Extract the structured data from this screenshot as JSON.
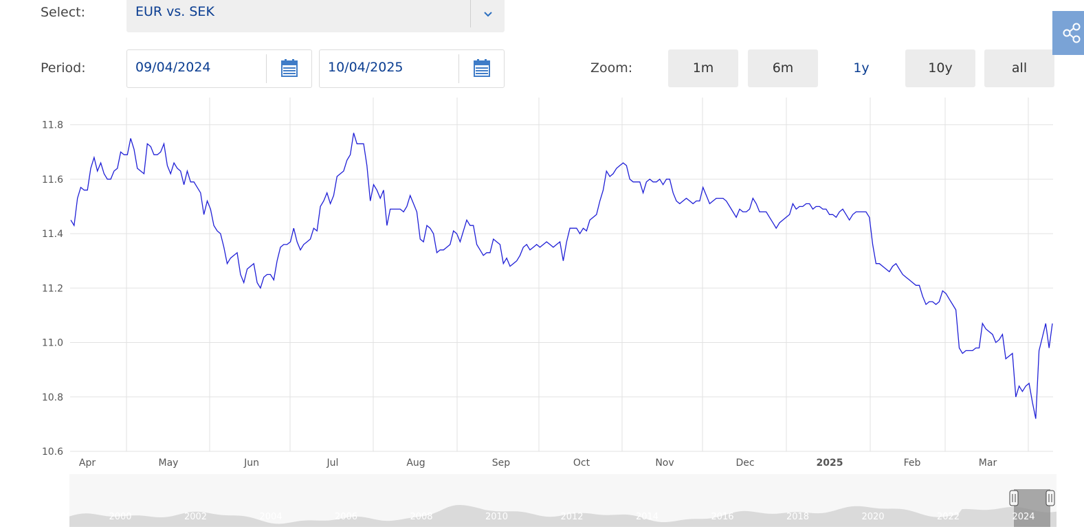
{
  "select": {
    "label": "Select:",
    "value": "EUR vs. SEK"
  },
  "period": {
    "label": "Period:",
    "from": "09/04/2024",
    "to": "10/04/2025"
  },
  "zoom": {
    "label": "Zoom:",
    "buttons": [
      "1m",
      "6m",
      "1y",
      "10y",
      "all"
    ],
    "active": "1y"
  },
  "colors": {
    "line": "#1f1fd6",
    "accent": "#0a3d91",
    "share_bg": "#7aa3d6",
    "grid": "#e2e2e2"
  },
  "icons": {
    "select": "chevron-down-icon",
    "date": "calendar-icon",
    "share": "share-icon"
  },
  "chart_data": {
    "type": "line",
    "title": "",
    "xlabel": "",
    "ylabel": "",
    "ylim": [
      10.6,
      11.9
    ],
    "yticks": [
      "10.6",
      "10.8",
      "11.0",
      "11.2",
      "11.4",
      "11.6",
      "11.8"
    ],
    "xticks": [
      "Apr",
      "May",
      "Jun",
      "Jul",
      "Aug",
      "Sep",
      "Oct",
      "Nov",
      "Dec",
      "2025",
      "Feb",
      "Mar"
    ],
    "grid": true,
    "series": [
      {
        "values": [
          11.45,
          11.43,
          11.53,
          11.57,
          11.56,
          11.56,
          11.64,
          11.68,
          11.63,
          11.66,
          11.62,
          11.6,
          11.6,
          11.63,
          11.64,
          11.7,
          11.69,
          11.69,
          11.75,
          11.71,
          11.64,
          11.63,
          11.62,
          11.73,
          11.72,
          11.69,
          11.69,
          11.7,
          11.73,
          11.65,
          11.62,
          11.66,
          11.64,
          11.63,
          11.58,
          11.63,
          11.59,
          11.59,
          11.57,
          11.55,
          11.47,
          11.52,
          11.49,
          11.43,
          11.41,
          11.4,
          11.35,
          11.29,
          11.31,
          11.32,
          11.33,
          11.25,
          11.22,
          11.27,
          11.28,
          11.29,
          11.22,
          11.2,
          11.24,
          11.25,
          11.25,
          11.23,
          11.3,
          11.35,
          11.36,
          11.36,
          11.37,
          11.42,
          11.37,
          11.34,
          11.36,
          11.37,
          11.38,
          11.42,
          11.41,
          11.5,
          11.52,
          11.55,
          11.51,
          11.54,
          11.61,
          11.62,
          11.63,
          11.67,
          11.69,
          11.77,
          11.73,
          11.73,
          11.73,
          11.65,
          11.52,
          11.58,
          11.56,
          11.53,
          11.56,
          11.43,
          11.49,
          11.49,
          11.49,
          11.49,
          11.48,
          11.5,
          11.54,
          11.51,
          11.48,
          11.38,
          11.37,
          11.43,
          11.42,
          11.4,
          11.33,
          11.34,
          11.34,
          11.35,
          11.36,
          11.41,
          11.4,
          11.37,
          11.41,
          11.45,
          11.43,
          11.43,
          11.36,
          11.34,
          11.32,
          11.33,
          11.33,
          11.38,
          11.37,
          11.36,
          11.29,
          11.31,
          11.28,
          11.29,
          11.3,
          11.32,
          11.35,
          11.36,
          11.34,
          11.35,
          11.36,
          11.35,
          11.36,
          11.37,
          11.36,
          11.35,
          11.36,
          11.37,
          11.3,
          11.37,
          11.42,
          11.42,
          11.42,
          11.4,
          11.42,
          11.41,
          11.45,
          11.46,
          11.47,
          11.52,
          11.56,
          11.63,
          11.61,
          11.62,
          11.64,
          11.65,
          11.66,
          11.65,
          11.6,
          11.59,
          11.59,
          11.59,
          11.55,
          11.59,
          11.6,
          11.59,
          11.59,
          11.6,
          11.58,
          11.6,
          11.6,
          11.55,
          11.52,
          11.51,
          11.52,
          11.53,
          11.52,
          11.51,
          11.52,
          11.52,
          11.57,
          11.54,
          11.51,
          11.52,
          11.53,
          11.53,
          11.53,
          11.52,
          11.5,
          11.48,
          11.46,
          11.49,
          11.48,
          11.48,
          11.49,
          11.53,
          11.51,
          11.48,
          11.48,
          11.48,
          11.46,
          11.44,
          11.42,
          11.44,
          11.45,
          11.46,
          11.47,
          11.51,
          11.49,
          11.5,
          11.5,
          11.51,
          11.51,
          11.49,
          11.5,
          11.5,
          11.49,
          11.49,
          11.47,
          11.47,
          11.46,
          11.48,
          11.49,
          11.47,
          11.45,
          11.47,
          11.48,
          11.48,
          11.48,
          11.48,
          11.46,
          11.36,
          11.29,
          11.29,
          11.28,
          11.27,
          11.26,
          11.28,
          11.29,
          11.27,
          11.25,
          11.24,
          11.23,
          11.22,
          11.21,
          11.21,
          11.17,
          11.14,
          11.15,
          11.15,
          11.14,
          11.15,
          11.19,
          11.18,
          11.16,
          11.14,
          11.12,
          10.98,
          10.96,
          10.97,
          10.97,
          10.97,
          10.98,
          10.98,
          11.07,
          11.05,
          11.04,
          11.03,
          11.0,
          11.01,
          11.03,
          10.94,
          10.95,
          10.96,
          10.8,
          10.84,
          10.82,
          10.84,
          10.85,
          10.78,
          10.72,
          10.97,
          11.02,
          11.07,
          10.98,
          11.07
        ]
      }
    ]
  },
  "navigator": {
    "labels": [
      "2000",
      "2002",
      "2004",
      "2006",
      "2008",
      "2010",
      "2012",
      "2014",
      "2016",
      "2018",
      "2020",
      "2022",
      "2024"
    ]
  }
}
